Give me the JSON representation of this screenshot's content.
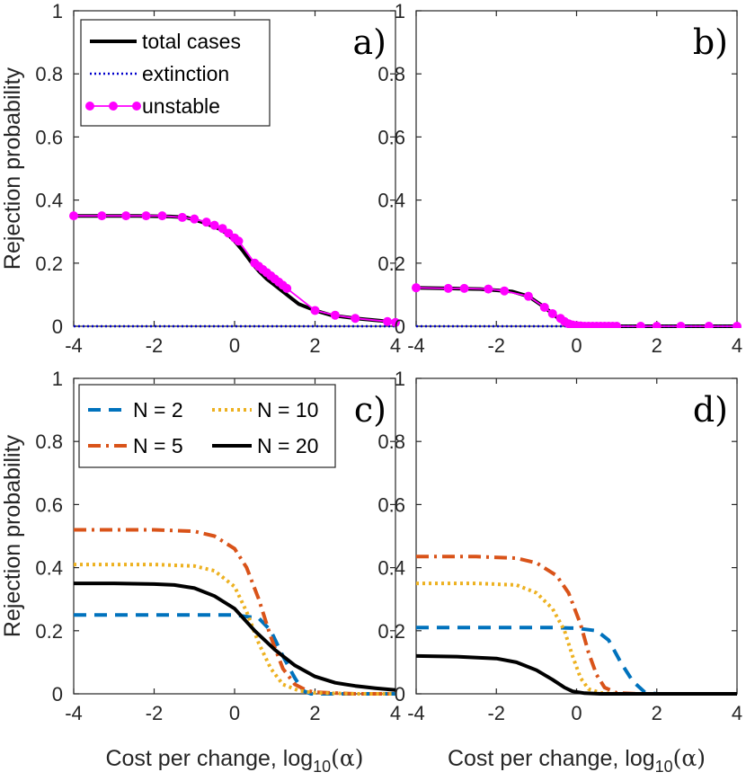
{
  "chart_data": [
    {
      "type": "line",
      "panel_label": "a)",
      "xlim": [
        -4,
        4
      ],
      "ylim": [
        0,
        1
      ],
      "xticks": [
        -4,
        -2,
        0,
        2,
        4
      ],
      "yticks": [
        0,
        0.2,
        0.4,
        0.6,
        0.8,
        1
      ],
      "ytick_labels": [
        "0",
        "0.2",
        "0.4",
        "0.6",
        "0.8",
        "1"
      ],
      "ylabel": "Rejection probability",
      "xlabel": "",
      "legend": "top-left",
      "series": [
        {
          "name": "total cases",
          "color": "#000000",
          "style": "solid",
          "x": [
            -4,
            -3.2,
            -2.4,
            -1.6,
            -1.2,
            -0.8,
            -0.4,
            -0.2,
            0,
            0.2,
            0.4,
            0.6,
            0.8,
            1.0,
            1.2,
            1.4,
            1.6,
            2.0,
            2.4,
            3.0,
            3.6,
            4.0
          ],
          "y": [
            0.35,
            0.35,
            0.35,
            0.348,
            0.345,
            0.33,
            0.31,
            0.295,
            0.27,
            0.24,
            0.205,
            0.175,
            0.15,
            0.13,
            0.11,
            0.09,
            0.07,
            0.05,
            0.035,
            0.025,
            0.018,
            0.012
          ]
        },
        {
          "name": "extinction",
          "color": "#0000cc",
          "style": "dotted",
          "x": [
            -4,
            4
          ],
          "y": [
            0,
            0
          ]
        },
        {
          "name": "unstable",
          "color": "#ff00ff",
          "style": "solid-markers",
          "x": [
            -4,
            -3.3,
            -2.7,
            -2.2,
            -1.8,
            -1.3,
            -1.0,
            -0.7,
            -0.5,
            -0.3,
            -0.15,
            0.0,
            0.1,
            0.5,
            0.6,
            0.7,
            0.8,
            0.9,
            1.0,
            1.1,
            1.2,
            1.3,
            2.0,
            2.5,
            3.0,
            3.8,
            4.0
          ],
          "y": [
            0.35,
            0.35,
            0.35,
            0.35,
            0.35,
            0.345,
            0.34,
            0.33,
            0.32,
            0.31,
            0.295,
            0.28,
            0.27,
            0.2,
            0.19,
            0.18,
            0.17,
            0.16,
            0.15,
            0.14,
            0.13,
            0.12,
            0.05,
            0.035,
            0.025,
            0.015,
            0.012
          ]
        }
      ]
    },
    {
      "type": "line",
      "panel_label": "b)",
      "xlim": [
        -4,
        4
      ],
      "ylim": [
        0,
        1
      ],
      "xticks": [
        -4,
        -2,
        0,
        2,
        4
      ],
      "yticks": [
        0,
        0.2,
        0.4,
        0.6,
        0.8,
        1
      ],
      "ylabel": "",
      "xlabel": "",
      "series": [
        {
          "name": "total cases",
          "color": "#000000",
          "style": "solid",
          "x": [
            -4,
            -3.2,
            -2.4,
            -1.6,
            -1.2,
            -0.8,
            -0.6,
            -0.4,
            -0.2,
            0,
            0.2,
            0.5,
            1.0,
            2.0,
            3.0,
            4.0
          ],
          "y": [
            0.122,
            0.12,
            0.118,
            0.11,
            0.095,
            0.06,
            0.04,
            0.02,
            0.008,
            0.003,
            0.001,
            0,
            0,
            0,
            0,
            0
          ]
        },
        {
          "name": "extinction",
          "color": "#0000cc",
          "style": "dotted",
          "x": [
            -4,
            4
          ],
          "y": [
            0,
            0
          ]
        },
        {
          "name": "unstable",
          "color": "#ff00ff",
          "style": "solid-markers",
          "x": [
            -4,
            -3.2,
            -2.8,
            -2.2,
            -1.8,
            -1.2,
            -0.8,
            -0.6,
            -0.4,
            -0.3,
            -0.2,
            -0.1,
            0,
            0.1,
            0.2,
            0.3,
            0.4,
            0.5,
            0.6,
            0.7,
            0.8,
            0.9,
            1.0,
            1.6,
            2.0,
            2.6,
            3.3,
            4.0
          ],
          "y": [
            0.122,
            0.12,
            0.12,
            0.118,
            0.112,
            0.095,
            0.06,
            0.04,
            0.025,
            0.015,
            0.008,
            0.004,
            0.002,
            0.001,
            0,
            0,
            0,
            0,
            0,
            0,
            0,
            0,
            0,
            0,
            0,
            0,
            0,
            0
          ]
        }
      ]
    },
    {
      "type": "line",
      "panel_label": "c)",
      "xlim": [
        -4,
        4
      ],
      "ylim": [
        0,
        1
      ],
      "xticks": [
        -4,
        -2,
        0,
        2,
        4
      ],
      "yticks": [
        0,
        0.2,
        0.4,
        0.6,
        0.8,
        1
      ],
      "ylabel": "Rejection probability",
      "xlabel": "Cost per change, log",
      "xlabel_sub": "10",
      "xlabel_tail": "(α)",
      "legend": "top-left",
      "series": [
        {
          "name": "N = 2",
          "color": "#0072bd",
          "style": "dashed",
          "x": [
            -4,
            -2,
            0,
            0.6,
            0.9,
            1.2,
            1.5,
            1.7,
            1.9,
            2.5,
            4.0
          ],
          "y": [
            0.25,
            0.25,
            0.25,
            0.24,
            0.2,
            0.12,
            0.05,
            0.01,
            0,
            0,
            0
          ]
        },
        {
          "name": "N = 5",
          "color": "#d95319",
          "style": "dashdot",
          "x": [
            -4,
            -2,
            -1.0,
            -0.5,
            0,
            0.3,
            0.6,
            0.9,
            1.2,
            1.5,
            1.8,
            2.0,
            3.0,
            4.0
          ],
          "y": [
            0.52,
            0.52,
            0.515,
            0.5,
            0.46,
            0.4,
            0.3,
            0.18,
            0.08,
            0.03,
            0.01,
            0.005,
            0,
            0
          ]
        },
        {
          "name": "N = 10",
          "color": "#edb120",
          "style": "dotted",
          "x": [
            -4,
            -2,
            -1.0,
            -0.5,
            0,
            0.3,
            0.6,
            0.9,
            1.2,
            1.6,
            2.0,
            3.0,
            4.0
          ],
          "y": [
            0.41,
            0.41,
            0.405,
            0.39,
            0.34,
            0.26,
            0.16,
            0.08,
            0.03,
            0.01,
            0.003,
            0,
            0
          ]
        },
        {
          "name": "N = 20",
          "color": "#000000",
          "style": "solid",
          "x": [
            -4,
            -3,
            -2,
            -1.5,
            -1,
            -0.5,
            0,
            0.5,
            1.0,
            1.5,
            2.0,
            2.5,
            3.0,
            3.5,
            4.0
          ],
          "y": [
            0.35,
            0.35,
            0.348,
            0.345,
            0.335,
            0.31,
            0.27,
            0.2,
            0.14,
            0.09,
            0.055,
            0.035,
            0.025,
            0.018,
            0.012
          ]
        }
      ]
    },
    {
      "type": "line",
      "panel_label": "d)",
      "xlim": [
        -4,
        4
      ],
      "ylim": [
        0,
        1
      ],
      "xticks": [
        -4,
        -2,
        0,
        2,
        4
      ],
      "yticks": [
        0,
        0.2,
        0.4,
        0.6,
        0.8,
        1
      ],
      "ylabel": "",
      "xlabel": "Cost per change, log",
      "xlabel_sub": "10",
      "xlabel_tail": "(α)",
      "series": [
        {
          "name": "N = 2",
          "color": "#0072bd",
          "style": "dashed",
          "x": [
            -4,
            -2,
            -0.5,
            0,
            0.5,
            0.8,
            1.1,
            1.4,
            1.7,
            2.0,
            4.0
          ],
          "y": [
            0.21,
            0.21,
            0.21,
            0.208,
            0.2,
            0.17,
            0.1,
            0.04,
            0.005,
            0,
            0
          ]
        },
        {
          "name": "N = 5",
          "color": "#d95319",
          "style": "dashdot",
          "x": [
            -4,
            -2.5,
            -1.5,
            -1.0,
            -0.5,
            -0.2,
            0.1,
            0.3,
            0.5,
            0.7,
            1.0,
            1.5,
            4.0
          ],
          "y": [
            0.435,
            0.435,
            0.43,
            0.415,
            0.375,
            0.32,
            0.22,
            0.13,
            0.06,
            0.02,
            0.003,
            0,
            0
          ]
        },
        {
          "name": "N = 10",
          "color": "#edb120",
          "style": "dotted",
          "x": [
            -4,
            -2.5,
            -1.5,
            -1.0,
            -0.6,
            -0.3,
            -0.1,
            0.1,
            0.3,
            0.6,
            1.0,
            4.0
          ],
          "y": [
            0.35,
            0.35,
            0.345,
            0.32,
            0.27,
            0.2,
            0.12,
            0.05,
            0.015,
            0.003,
            0,
            0
          ]
        },
        {
          "name": "N = 20",
          "color": "#000000",
          "style": "solid",
          "x": [
            -4,
            -3,
            -2,
            -1.5,
            -1.0,
            -0.6,
            -0.3,
            -0.1,
            0.2,
            0.6,
            1.0,
            2.0,
            4.0
          ],
          "y": [
            0.12,
            0.118,
            0.112,
            0.1,
            0.075,
            0.045,
            0.02,
            0.008,
            0.002,
            0,
            0,
            0,
            0
          ]
        }
      ]
    }
  ]
}
